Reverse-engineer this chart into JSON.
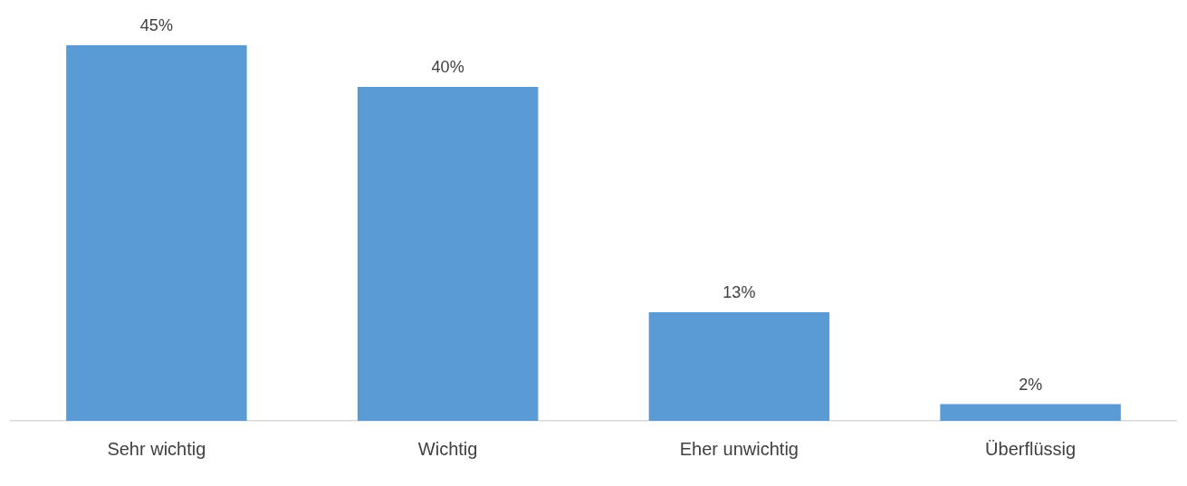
{
  "chart_data": {
    "type": "bar",
    "categories": [
      "Sehr wichtig",
      "Wichtig",
      "Eher unwichtig",
      "Überflüssig"
    ],
    "values": [
      45,
      40,
      13,
      2
    ],
    "value_labels": [
      "45%",
      "40%",
      "13%",
      "2%"
    ],
    "color": "#5b9bd5",
    "ylim": [
      0,
      45
    ],
    "tick_labels": "x",
    "grid": false,
    "legend": false
  }
}
